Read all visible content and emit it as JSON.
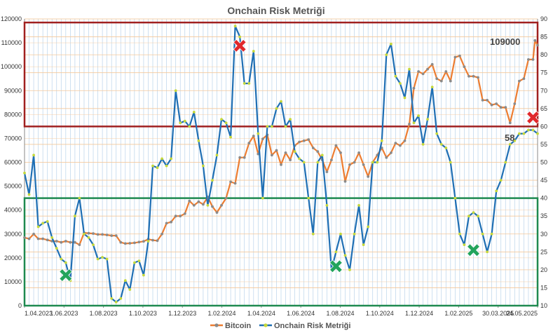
{
  "chart_data": {
    "type": "line",
    "title": "Onchain Risk Metriği",
    "xlabel": "",
    "ylabel": "",
    "x_tick_labels": [
      "1.04.2023",
      "1.06.2023",
      "1.08.2023",
      "1.10.2023",
      "1.12.2023",
      "1.02.2024",
      "1.04.2024",
      "1.06.2024",
      "1.08.2024",
      "1.10.2024",
      "1.12.2024",
      "1.02.2025",
      "30.03.2025",
      "24.05.2025"
    ],
    "x_range": [
      "2023-04-01",
      "2025-05-24"
    ],
    "y_left": {
      "min": 0,
      "max": 120000,
      "step": 10000
    },
    "y_right": {
      "min": 10,
      "max": 90,
      "step": 5
    },
    "grid": {
      "vertical": true,
      "horizontal": true,
      "horizontal_color": "#f3c79a",
      "vertical_color": "#b9d3ea"
    },
    "legend": {
      "placement": "bottom",
      "entries": [
        {
          "name": "Bitcoin",
          "color": "#ed7d31"
        },
        {
          "name": "Onchain Risk Metriği",
          "color": "#1f6fb4"
        }
      ]
    },
    "series": [
      {
        "name": "Bitcoin",
        "axis": "left",
        "color": "#ed7d31",
        "marker_color": "#8a8a8a",
        "points": [
          [
            "2023-04-01",
            28500
          ],
          [
            "2023-04-08",
            28000
          ],
          [
            "2023-04-15",
            30000
          ],
          [
            "2023-04-22",
            28000
          ],
          [
            "2023-04-29",
            28000
          ],
          [
            "2023-05-06",
            27500
          ],
          [
            "2023-05-13",
            27000
          ],
          [
            "2023-05-20",
            27000
          ],
          [
            "2023-05-27",
            26500
          ],
          [
            "2023-06-03",
            27000
          ],
          [
            "2023-06-10",
            26500
          ],
          [
            "2023-06-17",
            26500
          ],
          [
            "2023-06-24",
            25500
          ],
          [
            "2023-07-01",
            30500
          ],
          [
            "2023-07-08",
            30300
          ],
          [
            "2023-07-15",
            30200
          ],
          [
            "2023-07-22",
            29800
          ],
          [
            "2023-07-29",
            29800
          ],
          [
            "2023-08-05",
            29600
          ],
          [
            "2023-08-12",
            29300
          ],
          [
            "2023-08-19",
            29300
          ],
          [
            "2023-08-26",
            26500
          ],
          [
            "2023-09-02",
            26000
          ],
          [
            "2023-09-09",
            26100
          ],
          [
            "2023-09-16",
            26300
          ],
          [
            "2023-09-23",
            26600
          ],
          [
            "2023-09-30",
            26900
          ],
          [
            "2023-10-07",
            27800
          ],
          [
            "2023-10-14",
            27400
          ],
          [
            "2023-10-21",
            27200
          ],
          [
            "2023-10-28",
            30000
          ],
          [
            "2023-11-04",
            34500
          ],
          [
            "2023-11-11",
            35000
          ],
          [
            "2023-11-18",
            37500
          ],
          [
            "2023-11-25",
            37500
          ],
          [
            "2023-12-02",
            38500
          ],
          [
            "2023-12-09",
            43800
          ],
          [
            "2023-12-16",
            42000
          ],
          [
            "2023-12-23",
            43500
          ],
          [
            "2023-12-30",
            42400
          ],
          [
            "2024-01-06",
            45500
          ],
          [
            "2024-01-13",
            41500
          ],
          [
            "2024-01-20",
            39000
          ],
          [
            "2024-01-27",
            42000
          ],
          [
            "2024-02-03",
            45000
          ],
          [
            "2024-02-10",
            51800
          ],
          [
            "2024-02-17",
            51200
          ],
          [
            "2024-02-24",
            62000
          ],
          [
            "2024-03-02",
            62000
          ],
          [
            "2024-03-09",
            68000
          ],
          [
            "2024-03-16",
            71000
          ],
          [
            "2024-03-23",
            63500
          ],
          [
            "2024-03-30",
            69800
          ],
          [
            "2024-04-06",
            71500
          ],
          [
            "2024-04-13",
            63000
          ],
          [
            "2024-04-20",
            65000
          ],
          [
            "2024-04-27",
            59000
          ],
          [
            "2024-05-04",
            64000
          ],
          [
            "2024-05-11",
            61000
          ],
          [
            "2024-05-18",
            67000
          ],
          [
            "2024-05-25",
            68500
          ],
          [
            "2024-06-01",
            69000
          ],
          [
            "2024-06-08",
            69500
          ],
          [
            "2024-06-15",
            66000
          ],
          [
            "2024-06-22",
            64500
          ],
          [
            "2024-06-29",
            61000
          ],
          [
            "2024-07-06",
            56000
          ],
          [
            "2024-07-13",
            61000
          ],
          [
            "2024-07-20",
            67000
          ],
          [
            "2024-07-27",
            64000
          ],
          [
            "2024-08-03",
            52000
          ],
          [
            "2024-08-10",
            59000
          ],
          [
            "2024-08-17",
            60000
          ],
          [
            "2024-08-24",
            64000
          ],
          [
            "2024-08-31",
            59000
          ],
          [
            "2024-09-07",
            54000
          ],
          [
            "2024-09-14",
            60000
          ],
          [
            "2024-09-21",
            63000
          ],
          [
            "2024-09-28",
            66000
          ],
          [
            "2024-10-05",
            62000
          ],
          [
            "2024-10-12",
            64000
          ],
          [
            "2024-10-19",
            68000
          ],
          [
            "2024-10-26",
            67000
          ],
          [
            "2024-11-02",
            69000
          ],
          [
            "2024-11-09",
            76000
          ],
          [
            "2024-11-16",
            91000
          ],
          [
            "2024-11-23",
            98000
          ],
          [
            "2024-11-30",
            97000
          ],
          [
            "2024-12-07",
            99000
          ],
          [
            "2024-12-14",
            101000
          ],
          [
            "2024-12-21",
            95000
          ],
          [
            "2024-12-28",
            94000
          ],
          [
            "2025-01-04",
            98000
          ],
          [
            "2025-01-11",
            94000
          ],
          [
            "2025-01-18",
            104000
          ],
          [
            "2025-01-25",
            104500
          ],
          [
            "2025-02-01",
            100000
          ],
          [
            "2025-02-08",
            96000
          ],
          [
            "2025-02-15",
            96000
          ],
          [
            "2025-02-22",
            95500
          ],
          [
            "2025-03-01",
            86000
          ],
          [
            "2025-03-08",
            86000
          ],
          [
            "2025-03-15",
            84000
          ],
          [
            "2025-03-22",
            84500
          ],
          [
            "2025-03-29",
            83000
          ],
          [
            "2025-04-05",
            83000
          ],
          [
            "2025-04-12",
            76500
          ],
          [
            "2025-04-19",
            84500
          ],
          [
            "2025-04-26",
            94000
          ],
          [
            "2025-05-03",
            95000
          ],
          [
            "2025-05-10",
            103000
          ],
          [
            "2025-05-17",
            103000
          ],
          [
            "2025-05-20",
            111000
          ],
          [
            "2025-05-24",
            109000
          ]
        ]
      },
      {
        "name": "Onchain Risk Metriği",
        "axis": "right",
        "color": "#1f6fb4",
        "marker_color": "#c5d83a",
        "points": [
          [
            "2023-04-01",
            47
          ],
          [
            "2023-04-08",
            41
          ],
          [
            "2023-04-15",
            52
          ],
          [
            "2023-04-22",
            32
          ],
          [
            "2023-04-29",
            33
          ],
          [
            "2023-05-06",
            33.5
          ],
          [
            "2023-05-13",
            29
          ],
          [
            "2023-05-20",
            26
          ],
          [
            "2023-05-27",
            23
          ],
          [
            "2023-06-03",
            22
          ],
          [
            "2023-06-10",
            17
          ],
          [
            "2023-06-17",
            35
          ],
          [
            "2023-06-24",
            40
          ],
          [
            "2023-07-01",
            30
          ],
          [
            "2023-07-08",
            29
          ],
          [
            "2023-07-15",
            27
          ],
          [
            "2023-07-22",
            23
          ],
          [
            "2023-07-29",
            23.5
          ],
          [
            "2023-08-05",
            23
          ],
          [
            "2023-08-12",
            12
          ],
          [
            "2023-08-19",
            11
          ],
          [
            "2023-08-26",
            12
          ],
          [
            "2023-09-02",
            17
          ],
          [
            "2023-09-09",
            14.5
          ],
          [
            "2023-09-16",
            22
          ],
          [
            "2023-09-23",
            22.5
          ],
          [
            "2023-09-30",
            18.5
          ],
          [
            "2023-10-07",
            28
          ],
          [
            "2023-10-14",
            49
          ],
          [
            "2023-10-21",
            48.5
          ],
          [
            "2023-10-28",
            51
          ],
          [
            "2023-11-04",
            49
          ],
          [
            "2023-11-11",
            51
          ],
          [
            "2023-11-18",
            70
          ],
          [
            "2023-11-25",
            61
          ],
          [
            "2023-12-02",
            61.5
          ],
          [
            "2023-12-09",
            60
          ],
          [
            "2023-12-16",
            64
          ],
          [
            "2023-12-23",
            56
          ],
          [
            "2023-12-30",
            49
          ],
          [
            "2024-01-06",
            38
          ],
          [
            "2024-01-13",
            45
          ],
          [
            "2024-01-20",
            52
          ],
          [
            "2024-01-27",
            62
          ],
          [
            "2024-02-03",
            61
          ],
          [
            "2024-02-10",
            57
          ],
          [
            "2024-02-17",
            88
          ],
          [
            "2024-02-24",
            85
          ],
          [
            "2024-03-02",
            72
          ],
          [
            "2024-03-09",
            72
          ],
          [
            "2024-03-16",
            81
          ],
          [
            "2024-03-23",
            58
          ],
          [
            "2024-03-30",
            40
          ],
          [
            "2024-04-06",
            60
          ],
          [
            "2024-04-13",
            60
          ],
          [
            "2024-04-20",
            65
          ],
          [
            "2024-04-27",
            67
          ],
          [
            "2024-05-04",
            60
          ],
          [
            "2024-05-11",
            62
          ],
          [
            "2024-05-18",
            53
          ],
          [
            "2024-05-25",
            51
          ],
          [
            "2024-06-01",
            50
          ],
          [
            "2024-06-08",
            40
          ],
          [
            "2024-06-15",
            30
          ],
          [
            "2024-06-22",
            50
          ],
          [
            "2024-06-29",
            52
          ],
          [
            "2024-07-06",
            38
          ],
          [
            "2024-07-13",
            20
          ],
          [
            "2024-07-20",
            25
          ],
          [
            "2024-07-27",
            30
          ],
          [
            "2024-08-03",
            24
          ],
          [
            "2024-08-10",
            20
          ],
          [
            "2024-08-17",
            30
          ],
          [
            "2024-08-24",
            38
          ],
          [
            "2024-08-31",
            27
          ],
          [
            "2024-09-07",
            32
          ],
          [
            "2024-09-14",
            50
          ],
          [
            "2024-09-21",
            50
          ],
          [
            "2024-09-28",
            56
          ],
          [
            "2024-10-05",
            80
          ],
          [
            "2024-10-12",
            83
          ],
          [
            "2024-10-19",
            74
          ],
          [
            "2024-10-26",
            72
          ],
          [
            "2024-11-02",
            68
          ],
          [
            "2024-11-09",
            76
          ],
          [
            "2024-11-16",
            61
          ],
          [
            "2024-11-23",
            63
          ],
          [
            "2024-11-30",
            55
          ],
          [
            "2024-12-07",
            62
          ],
          [
            "2024-12-14",
            71
          ],
          [
            "2024-12-21",
            58
          ],
          [
            "2024-12-28",
            55
          ],
          [
            "2025-01-04",
            54
          ],
          [
            "2025-01-11",
            50
          ],
          [
            "2025-01-18",
            40
          ],
          [
            "2025-01-25",
            30
          ],
          [
            "2025-02-01",
            27
          ],
          [
            "2025-02-08",
            35
          ],
          [
            "2025-02-15",
            36
          ],
          [
            "2025-02-22",
            35
          ],
          [
            "2025-03-01",
            30
          ],
          [
            "2025-03-08",
            25
          ],
          [
            "2025-03-15",
            30
          ],
          [
            "2025-03-22",
            42
          ],
          [
            "2025-03-29",
            45
          ],
          [
            "2025-04-05",
            50
          ],
          [
            "2025-04-12",
            55
          ],
          [
            "2025-04-19",
            56
          ],
          [
            "2025-04-26",
            58
          ],
          [
            "2025-05-03",
            58
          ],
          [
            "2025-05-10",
            59
          ],
          [
            "2025-05-17",
            59
          ],
          [
            "2025-05-24",
            58
          ]
        ]
      }
    ],
    "annotations": {
      "bitcoin_last": "109000",
      "risk_last": "58"
    },
    "zones": [
      {
        "name": "high-risk-zone",
        "axis": "right",
        "from": 60,
        "to": 89,
        "color": "#a02020"
      },
      {
        "name": "low-risk-zone",
        "axis": "right",
        "from": 10,
        "to": 40,
        "color": "#1e8a50"
      }
    ],
    "markers": [
      {
        "kind": "cross",
        "color": "#e0282c",
        "x": "2024-02-24",
        "y_right": 82.5
      },
      {
        "kind": "cross",
        "color": "#e0282c",
        "x": "2025-05-17",
        "y_right": 62.5
      },
      {
        "kind": "cross",
        "color": "#23a45c",
        "x": "2023-06-03",
        "y_right": 18.5
      },
      {
        "kind": "cross",
        "color": "#23a45c",
        "x": "2024-07-20",
        "y_right": 21
      },
      {
        "kind": "cross",
        "color": "#23a45c",
        "x": "2025-02-15",
        "y_right": 25.5
      }
    ]
  }
}
